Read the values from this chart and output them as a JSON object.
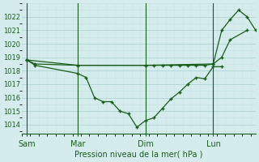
{
  "background_color": "#d4ecec",
  "grid_color_major": "#b0d4d4",
  "grid_color_minor": "#c8e4e4",
  "line_color": "#1a5c1a",
  "ylabel": "Pression niveau de la mer( hPa )",
  "ylim": [
    1013.3,
    1023.0
  ],
  "yticks": [
    1014,
    1015,
    1016,
    1017,
    1018,
    1019,
    1020,
    1021,
    1022
  ],
  "xtick_labels": [
    "Sam",
    "Mar",
    "Dim",
    "Lun"
  ],
  "xtick_positions": [
    0,
    3,
    7,
    11
  ],
  "vline_positions": [
    0,
    3,
    7,
    11
  ],
  "xlim": [
    -0.3,
    13.5
  ],
  "s1_x": [
    0,
    0.5,
    3,
    3.5,
    4.0,
    4.5,
    5.0,
    5.5,
    6.0,
    6.5,
    7.0,
    7.5,
    8.0,
    8.5,
    9.0,
    9.5,
    10.0,
    10.5,
    11.0,
    11.5
  ],
  "s1_y": [
    1018.8,
    1018.4,
    1017.8,
    1017.5,
    1016.0,
    1015.7,
    1015.7,
    1015.0,
    1014.8,
    1013.8,
    1014.3,
    1014.5,
    1015.2,
    1015.9,
    1016.4,
    1017.0,
    1017.5,
    1017.4,
    1018.3,
    1018.3
  ],
  "s2_x": [
    0,
    0.5,
    3,
    7.0,
    7.5,
    8.0,
    8.5,
    9.0,
    9.5,
    10.0,
    10.5,
    11.0,
    11.5,
    12.0,
    13.0
  ],
  "s2_y": [
    1018.8,
    1018.5,
    1018.4,
    1018.4,
    1018.4,
    1018.4,
    1018.4,
    1018.4,
    1018.4,
    1018.4,
    1018.4,
    1018.5,
    1019.0,
    1020.3,
    1021.0
  ],
  "s3_x": [
    0,
    3,
    7,
    11,
    11.5,
    12.0,
    12.5,
    13.0,
    13.5
  ],
  "s3_y": [
    1018.8,
    1018.4,
    1018.4,
    1018.5,
    1021.0,
    1021.8,
    1022.5,
    1022.0,
    1021.0
  ]
}
